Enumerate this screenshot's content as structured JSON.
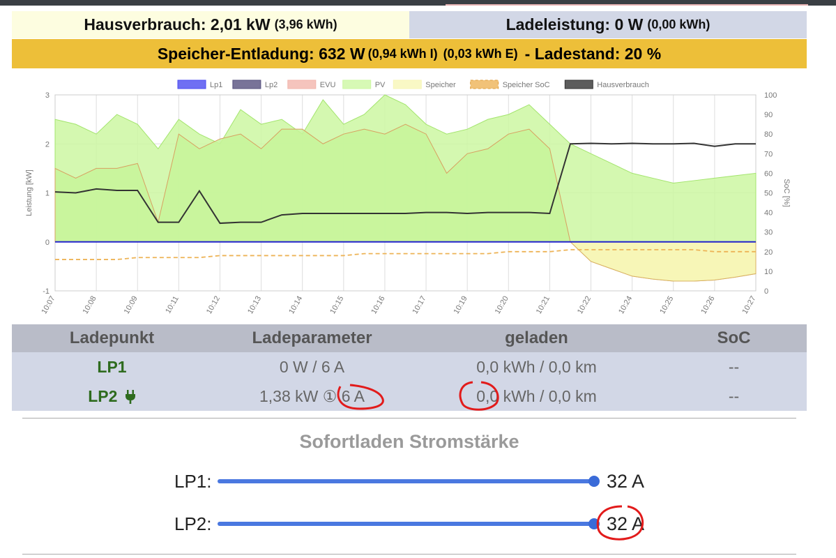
{
  "header": {
    "hausverbrauch_label": "Hausverbrauch: 2,01 kW",
    "hausverbrauch_kwh": "(3,96 kWh)",
    "ladeleistung_label": "Ladeleistung: 0 W",
    "ladeleistung_kwh": "(0,00 kWh)",
    "speicher_label": "Speicher-Entladung: 632 W",
    "speicher_import": "(0,94 kWh I)",
    "speicher_export": "(0,03 kWh E)",
    "ladestand_label": "- Ladestand: 20 %"
  },
  "chart_data": {
    "type": "area",
    "ylabel": "Leistung [kW]",
    "y2label": "SoC [%]",
    "ylim": [
      -1,
      3
    ],
    "y2lim": [
      0,
      100
    ],
    "y_ticks": [
      "3",
      "2",
      "1",
      "0",
      "-1"
    ],
    "y2_ticks": [
      "100",
      "90",
      "80",
      "70",
      "60",
      "50",
      "40",
      "30",
      "20",
      "10",
      "0"
    ],
    "x_ticks": [
      "10:07",
      "10:08",
      "10:09",
      "10:11",
      "10:12",
      "10:13",
      "10:14",
      "10:15",
      "10:16",
      "10:17",
      "10:19",
      "10:20",
      "10:21",
      "10:22",
      "10:24",
      "10:25",
      "10:26",
      "10:27"
    ],
    "legend": [
      {
        "name": "Lp1",
        "color": "#4b4bf0"
      },
      {
        "name": "Lp2",
        "color": "#56507e"
      },
      {
        "name": "EVU",
        "color": "#f2b5ac"
      },
      {
        "name": "PV",
        "color": "#cdf7a2"
      },
      {
        "name": "Speicher",
        "color": "#f7f6b7"
      },
      {
        "name": "Speicher SoC",
        "color": "#edb356"
      },
      {
        "name": "Hausverbrauch",
        "color": "#333333"
      }
    ],
    "series": [
      {
        "name": "PV",
        "values": [
          2.5,
          2.4,
          2.2,
          2.6,
          2.4,
          1.9,
          2.5,
          2.2,
          2.0,
          2.7,
          2.4,
          2.5,
          2.2,
          2.9,
          2.4,
          2.6,
          3.0,
          2.8,
          2.4,
          2.2,
          2.3,
          2.5,
          2.6,
          2.8,
          2.4,
          2.0,
          1.8,
          1.6,
          1.4,
          1.3,
          1.2,
          1.25,
          1.3,
          1.35,
          1.4
        ]
      },
      {
        "name": "Speicher",
        "values": [
          1.5,
          1.3,
          1.5,
          1.5,
          1.6,
          0.4,
          2.2,
          1.9,
          2.1,
          2.2,
          1.9,
          2.3,
          2.3,
          2.0,
          2.2,
          2.3,
          2.2,
          2.4,
          2.2,
          1.4,
          1.8,
          1.9,
          2.2,
          2.3,
          1.9,
          0.0,
          -0.4,
          -0.55,
          -0.7,
          -0.76,
          -0.8,
          -0.8,
          -0.78,
          -0.72,
          -0.65
        ]
      },
      {
        "name": "Hausverbrauch",
        "values": [
          1.02,
          1.0,
          1.08,
          1.05,
          1.05,
          0.4,
          0.4,
          1.04,
          0.38,
          0.4,
          0.4,
          0.55,
          0.58,
          0.58,
          0.58,
          0.58,
          0.58,
          0.58,
          0.6,
          0.6,
          0.58,
          0.6,
          0.6,
          0.6,
          0.58,
          2.0,
          2.01,
          2.0,
          2.01,
          2.0,
          2.0,
          2.01,
          1.95,
          2.0,
          2.0
        ]
      },
      {
        "name": "Lp1",
        "values": [
          0,
          0,
          0,
          0,
          0,
          0,
          0,
          0,
          0,
          0,
          0,
          0,
          0,
          0,
          0,
          0,
          0,
          0,
          0,
          0,
          0,
          0,
          0,
          0,
          0,
          0,
          0,
          0,
          0,
          0,
          0,
          0,
          0,
          0,
          0
        ]
      },
      {
        "name": "Speicher SoC",
        "values": [
          16,
          16,
          16,
          16,
          17,
          17,
          17,
          17,
          18,
          18,
          18,
          18,
          18,
          18,
          18,
          19,
          19,
          19,
          19,
          19,
          19,
          19,
          20,
          20,
          20,
          21,
          21,
          21,
          21,
          21,
          21,
          21,
          20,
          20,
          20
        ]
      }
    ]
  },
  "table": {
    "headers": [
      "Ladepunkt",
      "Ladeparameter",
      "geladen",
      "SoC"
    ],
    "rows": [
      {
        "name": "LP1",
        "param": "0 W / 6 A",
        "geladen": "0,0 kWh / 0,0 km",
        "soc": "--"
      },
      {
        "name": "LP2",
        "param": "1,38 kW ① 6 A",
        "geladen": "0,0 kWh / 0,0 km",
        "soc": "--"
      }
    ]
  },
  "sofortladen": {
    "title": "Sofortladen Stromstärke",
    "sliders": [
      {
        "label": "LP1:",
        "value": "32 A",
        "fraction": 1.0
      },
      {
        "label": "LP2:",
        "value": "32 A",
        "fraction": 1.0
      }
    ]
  },
  "colors": {
    "haus_bg": "#fdfde0",
    "lade_bg": "#d2d7e6",
    "speicher_bg": "#edbf39",
    "lp_name": "#2e6b1e",
    "slider": "#4a78e0",
    "annotation": "#e21b1b"
  }
}
